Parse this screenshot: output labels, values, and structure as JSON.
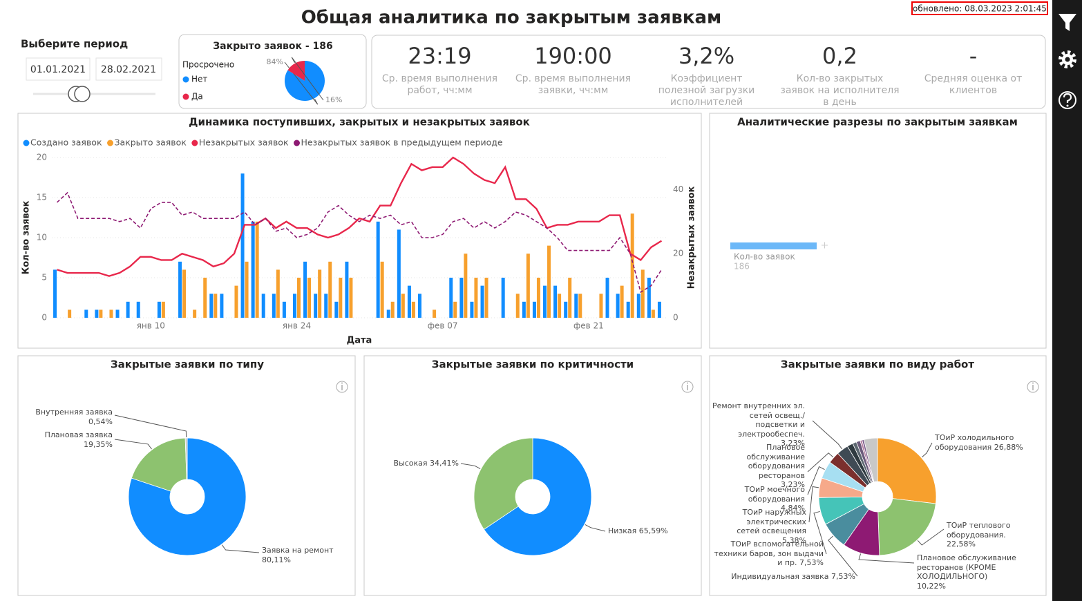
{
  "header": {
    "title": "Общая аналитика по закрытым заявкам",
    "updated": "обновлено: 08.03.2023 2:01:45"
  },
  "period": {
    "label": "Выберите период",
    "start": "01.01.2021",
    "end": "28.02.2021"
  },
  "kpis": [
    {
      "value": "23:19",
      "label": "Ср. время выполнения работ, чч:мм"
    },
    {
      "value": "190:00",
      "label": "Ср. время выполнения заявки, чч:мм"
    },
    {
      "value": "3,2%",
      "label": "Коэффициент полезной загрузки исполнителей"
    },
    {
      "value": "0,2",
      "label": "Кол-во закрытых заявок на исполнителя в день"
    },
    {
      "value": "-",
      "label": "Средняя оценка от клиентов"
    }
  ],
  "chart_data": [
    {
      "type": "pie",
      "title": "Закрыто заявок - 186",
      "legend_title": "Просрочено",
      "categories": [
        "Нет",
        "Да"
      ],
      "values": [
        84,
        16
      ],
      "value_labels": [
        "84%",
        "16%"
      ],
      "colors": [
        "#118DFF",
        "#E8274B"
      ]
    },
    {
      "type": "combo",
      "title": "Динамика поступивших, закрытых и незакрытых заявок",
      "xlabel": "Дата",
      "ylabel": "Кол-во заявок",
      "y2label": "Незакрытых заявок",
      "categories": [
        null,
        null,
        null,
        null,
        null,
        null,
        null,
        null,
        null,
        "янв 10",
        null,
        null,
        null,
        null,
        null,
        null,
        null,
        null,
        null,
        null,
        null,
        null,
        null,
        "янв 24",
        null,
        null,
        null,
        null,
        null,
        null,
        null,
        null,
        null,
        null,
        null,
        null,
        null,
        "фев 07",
        null,
        null,
        null,
        null,
        null,
        null,
        null,
        null,
        null,
        null,
        null,
        null,
        null,
        "фев 21",
        null,
        null,
        null,
        null,
        null,
        null,
        null
      ],
      "ylim": [
        0,
        20
      ],
      "yticks": [
        0,
        5,
        10,
        15,
        20
      ],
      "y2lim": [
        0,
        50
      ],
      "y2ticks": [
        0,
        20,
        40
      ],
      "grid": true,
      "series": [
        {
          "name": "Создано заявок",
          "kind": "bar",
          "color": "#118DFF",
          "values": [
            6,
            0,
            0,
            1,
            1,
            0,
            1,
            2,
            2,
            0,
            2,
            0,
            7,
            0,
            0,
            3,
            3,
            0,
            18,
            12,
            3,
            3,
            2,
            3,
            7,
            3,
            3,
            2,
            7,
            0,
            0,
            12,
            1,
            11,
            4,
            3,
            0,
            0,
            5,
            5,
            2,
            4,
            0,
            5,
            0,
            2,
            2,
            4,
            4,
            2,
            3,
            0,
            0,
            5,
            3,
            2,
            3,
            5,
            2
          ]
        },
        {
          "name": "Закрыто заявок",
          "kind": "bar",
          "color": "#F7A02D",
          "values": [
            0,
            1,
            0,
            0,
            1,
            1,
            0,
            0,
            0,
            0,
            2,
            0,
            6,
            1,
            5,
            3,
            0,
            4,
            7,
            12,
            0,
            6,
            0,
            5,
            5,
            6,
            7,
            5,
            5,
            0,
            0,
            7,
            2,
            3,
            2,
            0,
            1,
            0,
            2,
            8,
            5,
            5,
            0,
            0,
            3,
            8,
            5,
            9,
            3,
            5,
            3,
            0,
            3,
            0,
            4,
            13,
            6,
            1,
            0
          ]
        },
        {
          "name": "Незакрытых заявок",
          "kind": "line",
          "axis": "y2",
          "color": "#E8274B",
          "values": [
            15,
            14,
            14,
            14,
            14,
            13,
            14,
            16,
            19,
            19,
            18,
            18,
            20,
            19,
            18,
            16,
            17,
            20,
            29,
            29,
            31,
            28,
            30,
            28,
            28,
            26,
            25,
            26,
            28,
            31,
            30,
            35,
            35,
            42,
            48,
            46,
            47,
            47,
            50,
            48,
            45,
            43,
            42,
            47,
            37,
            37,
            34,
            28,
            29,
            29,
            30,
            30,
            30,
            32,
            32,
            20,
            18,
            22,
            24
          ]
        },
        {
          "name": "Незакрытых заявок в предыдущем периоде",
          "kind": "dashed",
          "axis": "y2",
          "color": "#8E1A73",
          "values": [
            36,
            39,
            31,
            31,
            31,
            31,
            30,
            31,
            28,
            34,
            36,
            36,
            32,
            33,
            31,
            31,
            31,
            31,
            33,
            29,
            31,
            27,
            28,
            25,
            26,
            28,
            33,
            35,
            32,
            30,
            32,
            31,
            32,
            29,
            30,
            25,
            25,
            26,
            30,
            31,
            28,
            30,
            28,
            30,
            33,
            32,
            30,
            28,
            25,
            21,
            21,
            21,
            21,
            21,
            25,
            20,
            8,
            10,
            15
          ]
        }
      ]
    },
    {
      "type": "hbar",
      "title": "Аналитические разрезы по закрытым заявкам",
      "categories": [
        "Кол-во заявок"
      ],
      "values": [
        186
      ],
      "color": "#6CB8F8"
    },
    {
      "type": "donut",
      "title": "Закрытые заявки по типу",
      "categories": [
        "Заявка на ремонт",
        "Плановая заявка",
        "Внутренняя заявка"
      ],
      "values": [
        80.11,
        19.35,
        0.54
      ],
      "value_labels": [
        "80,11%",
        "19,35%",
        "0,54%"
      ],
      "colors": [
        "#118DFF",
        "#8DC26F",
        "#C8C8C8"
      ]
    },
    {
      "type": "donut",
      "title": "Закрытые заявки по критичности",
      "categories": [
        "Низкая",
        "Высокая"
      ],
      "values": [
        65.59,
        34.41
      ],
      "value_labels": [
        "65,59%",
        "34,41%"
      ],
      "colors": [
        "#118DFF",
        "#8DC26F"
      ]
    },
    {
      "type": "donut",
      "title": "Закрытые заявки по виду работ",
      "categories": [
        "ТОиР холодильного оборудования",
        "ТОиР теплового оборудования.",
        "Плановое обслуживание ресторанов (КРОМЕ ХОЛОДИЛЬНОГО)",
        "Индивидуальная заявка",
        "ТОиР вспомогательной техники баров, зон выдачи и пр.",
        "ТОиР наружных электрических сетей освещения",
        "ТОиР моечного оборудования",
        "Плановое обслуживание оборудования ресторанов",
        "Ремонт внутренних эл. сетей освещ./подсветки и электрообеспеч.",
        null,
        null,
        null,
        null,
        null,
        null
      ],
      "values": [
        26.88,
        22.58,
        10.22,
        7.53,
        7.53,
        5.38,
        4.84,
        3.23,
        3.23,
        1.61,
        1.08,
        1.08,
        0.54,
        0.54,
        3.71
      ],
      "value_labels": [
        "26,88%",
        "22,58%",
        "10,22%",
        "7,53%",
        "7,53%",
        "5,38%",
        "4,84%",
        "3,23%",
        "3,23%",
        null,
        null,
        null,
        null,
        null,
        null
      ],
      "colors": [
        "#F7A02D",
        "#8DC26F",
        "#8E1A73",
        "#4A8D9E",
        "#45C4B8",
        "#F6A98A",
        "#A7DFF2",
        "#7B2F2D",
        "#3F4A54",
        "#2F3A40",
        "#5C6770",
        "#6B5B7B",
        "#B57DA0",
        "#7D5E8C",
        "#C8C8C8"
      ]
    }
  ]
}
